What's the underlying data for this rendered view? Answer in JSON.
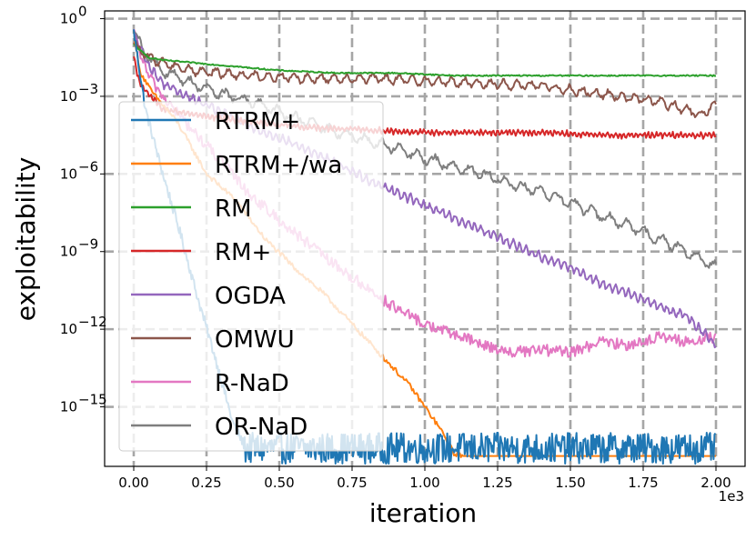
{
  "chart_data": {
    "type": "line",
    "title": "",
    "xlabel": "iteration",
    "ylabel": "exploitability",
    "x_offset_text": "1e3",
    "xlim": [
      -100,
      2100
    ],
    "ylim_log10": [
      -17.3,
      0.3
    ],
    "x_ticks": [
      0,
      250,
      500,
      750,
      1000,
      1250,
      1500,
      1750,
      2000
    ],
    "x_tick_labels": [
      "0.00",
      "0.25",
      "0.50",
      "0.75",
      "1.00",
      "1.25",
      "1.50",
      "1.75",
      "2.00"
    ],
    "y_ticks_log10": [
      0,
      -3,
      -6,
      -9,
      -12,
      -15
    ],
    "y_tick_bases": [
      "10",
      "10",
      "10",
      "10",
      "10",
      "10"
    ],
    "y_tick_exponents": [
      "0",
      "−3",
      "−6",
      "−9",
      "−12",
      "−15"
    ],
    "grid": true,
    "legend_position": "center-left",
    "series": [
      {
        "name": "RTRM+",
        "color": "#1f77b4",
        "style": "floor-noise",
        "x": [
          0,
          40,
          100,
          160,
          220,
          280,
          340,
          380,
          420
        ],
        "log10_y": [
          -0.5,
          -3.5,
          -6.0,
          -8.3,
          -10.8,
          -13.1,
          -15.6,
          -16.5,
          -16.5
        ],
        "floor_log10": [
          -17.2,
          -16.0
        ]
      },
      {
        "name": "RTRM+/wa",
        "color": "#ff7f0e",
        "style": "line",
        "x": [
          0,
          20,
          60,
          150,
          250,
          350,
          450,
          550,
          650,
          750,
          850,
          950,
          1050,
          1100,
          1150,
          2000
        ],
        "log10_y": [
          -0.5,
          -2.0,
          -2.8,
          -4.0,
          -6.0,
          -7.0,
          -8.5,
          -9.6,
          -10.6,
          -11.8,
          -13.0,
          -14.2,
          -15.8,
          -16.8,
          -16.9,
          -16.9
        ]
      },
      {
        "name": "RM",
        "color": "#2ca02c",
        "style": "line",
        "x": [
          0,
          50,
          100,
          200,
          300,
          400,
          500,
          700,
          900,
          1100,
          1300,
          1500,
          1700,
          1900,
          2000
        ],
        "log10_y": [
          -1.0,
          -1.5,
          -1.6,
          -1.7,
          -1.8,
          -1.9,
          -2.0,
          -2.1,
          -2.1,
          -2.2,
          -2.2,
          -2.2,
          -2.2,
          -2.2,
          -2.2
        ]
      },
      {
        "name": "RM+",
        "color": "#d62728",
        "style": "line",
        "x": [
          0,
          20,
          100,
          200,
          400,
          600,
          800,
          1000,
          1200,
          1400,
          1600,
          1800,
          2000
        ],
        "log10_y": [
          -1.5,
          -2.5,
          -3.5,
          -3.7,
          -4.0,
          -4.2,
          -4.3,
          -4.4,
          -4.4,
          -4.4,
          -4.5,
          -4.5,
          -4.5
        ]
      },
      {
        "name": "OGDA",
        "color": "#9467bd",
        "style": "line",
        "x": [
          0,
          50,
          100,
          200,
          300,
          400,
          500,
          600,
          700,
          800,
          900,
          1000,
          1100,
          1200,
          1300,
          1400,
          1500,
          1600,
          1700,
          1800,
          1900,
          2000
        ],
        "log10_y": [
          -0.6,
          -1.8,
          -2.5,
          -3.1,
          -3.6,
          -4.2,
          -4.6,
          -5.1,
          -5.6,
          -6.2,
          -6.7,
          -7.2,
          -7.7,
          -8.2,
          -8.7,
          -9.2,
          -9.6,
          -10.2,
          -10.6,
          -11.1,
          -11.5,
          -12.6
        ]
      },
      {
        "name": "OMWU",
        "color": "#8c564b",
        "style": "line",
        "x": [
          0,
          50,
          100,
          200,
          300,
          400,
          600,
          800,
          1000,
          1200,
          1400,
          1600,
          1800,
          1950,
          2000
        ],
        "log10_y": [
          -1.0,
          -1.5,
          -1.7,
          -2.0,
          -2.1,
          -2.2,
          -2.3,
          -2.3,
          -2.4,
          -2.5,
          -2.6,
          -2.9,
          -3.2,
          -3.7,
          -3.3
        ]
      },
      {
        "name": "R-NaD",
        "color": "#e377c2",
        "style": "line",
        "x": [
          0,
          50,
          100,
          200,
          300,
          400,
          500,
          600,
          700,
          800,
          900,
          1000,
          1100,
          1200,
          1300,
          1400,
          1500,
          1600,
          1700,
          1800,
          1900,
          2000
        ],
        "log10_y": [
          -0.6,
          -2.2,
          -3.0,
          -4.3,
          -5.5,
          -6.8,
          -7.8,
          -8.7,
          -9.6,
          -10.4,
          -11.2,
          -11.8,
          -12.2,
          -12.6,
          -12.9,
          -12.8,
          -12.9,
          -12.5,
          -12.6,
          -12.3,
          -12.5,
          -12.3
        ]
      },
      {
        "name": "OR-NaD",
        "color": "#7f7f7f",
        "style": "line",
        "x": [
          0,
          50,
          100,
          200,
          300,
          400,
          500,
          600,
          700,
          800,
          900,
          1000,
          1100,
          1200,
          1300,
          1400,
          1500,
          1600,
          1700,
          1800,
          1900,
          2000
        ],
        "log10_y": [
          -0.6,
          -1.5,
          -2.0,
          -2.5,
          -2.9,
          -3.2,
          -3.6,
          -4.0,
          -4.4,
          -4.7,
          -5.0,
          -5.4,
          -5.7,
          -6.0,
          -6.4,
          -6.7,
          -7.1,
          -7.6,
          -8.0,
          -8.5,
          -9.0,
          -9.6
        ]
      }
    ]
  }
}
